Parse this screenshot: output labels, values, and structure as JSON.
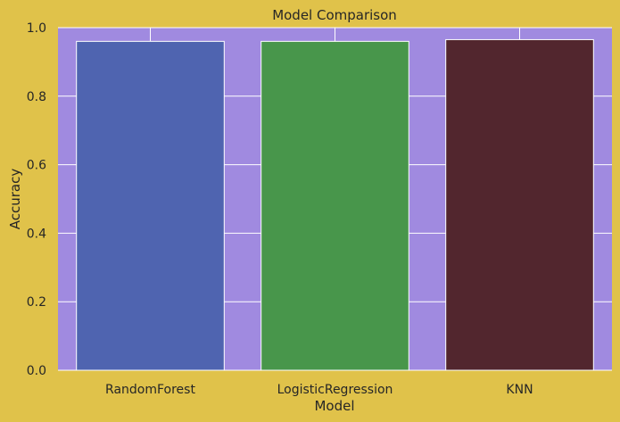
{
  "chart_data": {
    "type": "bar",
    "title": "Model Comparison",
    "xlabel": "Model",
    "ylabel": "Accuracy",
    "categories": [
      "RandomForest",
      "LogisticRegression",
      "KNN"
    ],
    "values": [
      0.96,
      0.96,
      0.965
    ],
    "bar_colors": [
      "#4f64b0",
      "#48964b",
      "#52262e"
    ],
    "ylim": [
      0,
      1.0
    ],
    "yticks": [
      "0.0",
      "0.2",
      "0.4",
      "0.6",
      "0.8",
      "1.0"
    ],
    "grid": true,
    "colors": {
      "figure_background": "#e0c24a",
      "plot_background": "#a08ae0",
      "grid": "#ffffff",
      "bar_edge": "#ffffff"
    }
  }
}
